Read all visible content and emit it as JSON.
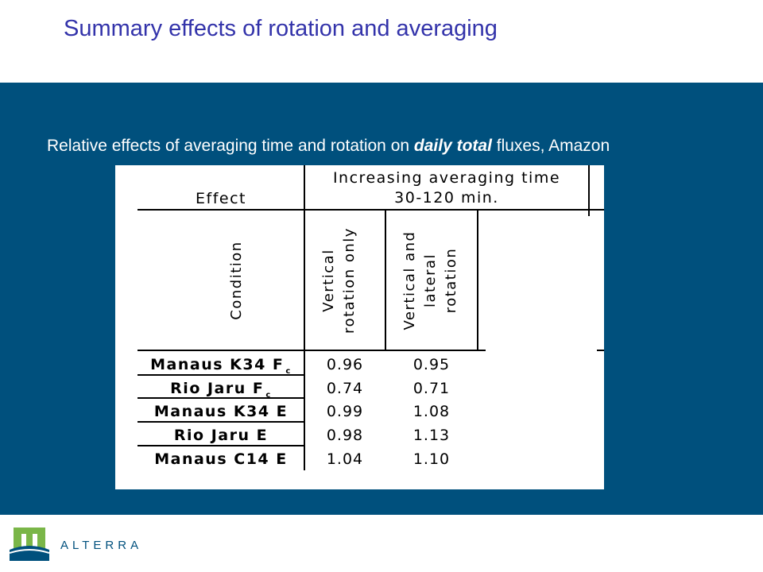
{
  "slide": {
    "title": "Summary effects of rotation and averaging",
    "subtitle_prefix": "Relative effects of averaging time and rotation on ",
    "subtitle_emphasis": "daily total",
    "subtitle_suffix": " fluxes, Amazon"
  },
  "table": {
    "effect_header": "Effect",
    "group_header_line1": "Increasing averaging time",
    "group_header_line2": "30-120 min.",
    "condition_header": "Condition",
    "col1_line1": "Vertical",
    "col1_line2": "rotation only",
    "col2_line1": "Vertical and",
    "col2_line2": "lateral",
    "col2_line3": "rotation",
    "rows": [
      {
        "label": "Manaus K34 F",
        "sub": "c",
        "v1": "0.96",
        "v2": "0.95"
      },
      {
        "label": "Rio Jaru F",
        "sub": "c",
        "v1": "0.74",
        "v2": "0.71"
      },
      {
        "label": "Manaus K34 E",
        "sub": "",
        "v1": "0.99",
        "v2": "1.08"
      },
      {
        "label": "Rio Jaru E",
        "sub": "",
        "v1": "0.98",
        "v2": "1.13"
      },
      {
        "label": "Manaus C14 E",
        "sub": "",
        "v1": "1.04",
        "v2": "1.10"
      }
    ]
  },
  "footer": {
    "logo_text": "ALTERRA",
    "logo_colors": {
      "green": "#7ab648",
      "blue": "#00507d"
    }
  }
}
